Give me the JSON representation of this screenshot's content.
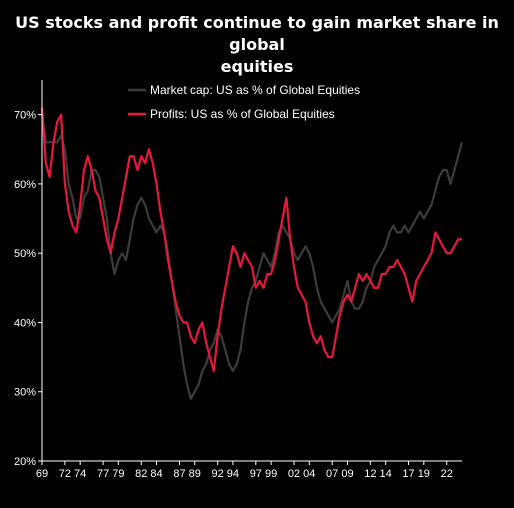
{
  "chart_data": {
    "type": "line",
    "title_lines": [
      "US stocks and profit continue to gain market share in global",
      "equities"
    ],
    "xlabel": "",
    "ylabel": "",
    "x_tick_labels": [
      "69",
      "72",
      "74",
      "77",
      "79",
      "82",
      "84",
      "87",
      "89",
      "92",
      "94",
      "97",
      "99",
      "02",
      "04",
      "07",
      "09",
      "12",
      "14",
      "17",
      "19",
      "22"
    ],
    "x_tick_years": [
      1969,
      1972,
      1974,
      1977,
      1979,
      1982,
      1984,
      1987,
      1989,
      1992,
      1994,
      1997,
      1999,
      2002,
      2004,
      2007,
      2009,
      2012,
      2014,
      2017,
      2019,
      2022
    ],
    "y_tick_labels": [
      "20%",
      "30%",
      "40%",
      "50%",
      "60%",
      "70%"
    ],
    "y_tick_values": [
      20,
      30,
      40,
      50,
      60,
      70
    ],
    "xlim": [
      1969,
      2024
    ],
    "ylim": [
      20,
      75
    ],
    "grid": false,
    "legend": "top-center",
    "series": [
      {
        "name": "Market cap: US as % of Global Equities",
        "color": "#3c3c3c",
        "points": [
          [
            1969.0,
            70
          ],
          [
            1969.5,
            66
          ],
          [
            1970.0,
            66
          ],
          [
            1970.5,
            66
          ],
          [
            1971.0,
            66
          ],
          [
            1971.5,
            67
          ],
          [
            1972.0,
            65
          ],
          [
            1972.5,
            60
          ],
          [
            1973.0,
            58
          ],
          [
            1973.5,
            55
          ],
          [
            1974.0,
            55
          ],
          [
            1974.5,
            58
          ],
          [
            1975.0,
            59
          ],
          [
            1975.5,
            62
          ],
          [
            1976.0,
            62
          ],
          [
            1976.5,
            61
          ],
          [
            1977.0,
            58
          ],
          [
            1977.5,
            55
          ],
          [
            1978.0,
            50
          ],
          [
            1978.5,
            47
          ],
          [
            1979.0,
            49
          ],
          [
            1979.5,
            50
          ],
          [
            1980.0,
            49
          ],
          [
            1980.5,
            52
          ],
          [
            1981.0,
            55
          ],
          [
            1981.5,
            57
          ],
          [
            1982.0,
            58
          ],
          [
            1982.5,
            57
          ],
          [
            1983.0,
            55
          ],
          [
            1983.5,
            54
          ],
          [
            1984.0,
            53
          ],
          [
            1984.5,
            54
          ],
          [
            1985.0,
            53
          ],
          [
            1985.5,
            50
          ],
          [
            1986.0,
            46
          ],
          [
            1986.5,
            42
          ],
          [
            1987.0,
            38
          ],
          [
            1987.5,
            34
          ],
          [
            1988.0,
            31
          ],
          [
            1988.5,
            29
          ],
          [
            1989.0,
            30
          ],
          [
            1989.5,
            31
          ],
          [
            1990.0,
            33
          ],
          [
            1990.5,
            34
          ],
          [
            1991.0,
            36
          ],
          [
            1991.5,
            37
          ],
          [
            1992.0,
            39
          ],
          [
            1992.5,
            38
          ],
          [
            1993.0,
            36
          ],
          [
            1993.5,
            34
          ],
          [
            1994.0,
            33
          ],
          [
            1994.5,
            34
          ],
          [
            1995.0,
            36
          ],
          [
            1995.5,
            40
          ],
          [
            1996.0,
            43
          ],
          [
            1996.5,
            45
          ],
          [
            1997.0,
            46
          ],
          [
            1997.5,
            48
          ],
          [
            1998.0,
            50
          ],
          [
            1998.5,
            49
          ],
          [
            1999.0,
            48
          ],
          [
            1999.5,
            50
          ],
          [
            2000.0,
            53
          ],
          [
            2000.5,
            54
          ],
          [
            2001.0,
            53
          ],
          [
            2001.5,
            52
          ],
          [
            2002.0,
            50
          ],
          [
            2002.5,
            49
          ],
          [
            2003.0,
            50
          ],
          [
            2003.5,
            51
          ],
          [
            2004.0,
            50
          ],
          [
            2004.5,
            48
          ],
          [
            2005.0,
            45
          ],
          [
            2005.5,
            43
          ],
          [
            2006.0,
            42
          ],
          [
            2006.5,
            41
          ],
          [
            2007.0,
            40
          ],
          [
            2007.5,
            41
          ],
          [
            2008.0,
            42
          ],
          [
            2008.5,
            44
          ],
          [
            2009.0,
            46
          ],
          [
            2009.5,
            43
          ],
          [
            2010.0,
            42
          ],
          [
            2010.5,
            42
          ],
          [
            2011.0,
            43
          ],
          [
            2011.5,
            45
          ],
          [
            2012.0,
            46
          ],
          [
            2012.5,
            48
          ],
          [
            2013.0,
            49
          ],
          [
            2013.5,
            50
          ],
          [
            2014.0,
            51
          ],
          [
            2014.5,
            53
          ],
          [
            2015.0,
            54
          ],
          [
            2015.5,
            53
          ],
          [
            2016.0,
            53
          ],
          [
            2016.5,
            54
          ],
          [
            2017.0,
            53
          ],
          [
            2017.5,
            54
          ],
          [
            2018.0,
            55
          ],
          [
            2018.5,
            56
          ],
          [
            2019.0,
            55
          ],
          [
            2019.5,
            56
          ],
          [
            2020.0,
            57
          ],
          [
            2020.5,
            59
          ],
          [
            2021.0,
            61
          ],
          [
            2021.5,
            62
          ],
          [
            2022.0,
            62
          ],
          [
            2022.5,
            60
          ],
          [
            2023.0,
            62
          ],
          [
            2023.5,
            64
          ],
          [
            2024.0,
            66
          ]
        ]
      },
      {
        "name": "Profits: US as % of Global Equities",
        "color": "#e8173c",
        "points": [
          [
            1969.0,
            71
          ],
          [
            1969.5,
            63
          ],
          [
            1970.0,
            61
          ],
          [
            1970.5,
            66
          ],
          [
            1971.0,
            69
          ],
          [
            1971.5,
            70
          ],
          [
            1972.0,
            60
          ],
          [
            1972.5,
            56
          ],
          [
            1973.0,
            54
          ],
          [
            1973.5,
            53
          ],
          [
            1974.0,
            57
          ],
          [
            1974.5,
            62
          ],
          [
            1975.0,
            64
          ],
          [
            1975.5,
            62
          ],
          [
            1976.0,
            59
          ],
          [
            1976.5,
            58
          ],
          [
            1977.0,
            55
          ],
          [
            1977.5,
            52
          ],
          [
            1978.0,
            50
          ],
          [
            1978.5,
            53
          ],
          [
            1979.0,
            55
          ],
          [
            1979.5,
            58
          ],
          [
            1980.0,
            61
          ],
          [
            1980.5,
            64
          ],
          [
            1981.0,
            64
          ],
          [
            1981.5,
            62
          ],
          [
            1982.0,
            64
          ],
          [
            1982.5,
            63
          ],
          [
            1983.0,
            65
          ],
          [
            1983.5,
            63
          ],
          [
            1984.0,
            60
          ],
          [
            1984.5,
            56
          ],
          [
            1985.0,
            53
          ],
          [
            1985.5,
            49
          ],
          [
            1986.0,
            46
          ],
          [
            1986.5,
            43
          ],
          [
            1987.0,
            41
          ],
          [
            1987.5,
            40
          ],
          [
            1988.0,
            40
          ],
          [
            1988.5,
            38
          ],
          [
            1989.0,
            37
          ],
          [
            1989.5,
            39
          ],
          [
            1990.0,
            40
          ],
          [
            1990.5,
            37
          ],
          [
            1991.0,
            35
          ],
          [
            1991.5,
            33
          ],
          [
            1992.0,
            38
          ],
          [
            1992.5,
            42
          ],
          [
            1993.0,
            45
          ],
          [
            1993.5,
            48
          ],
          [
            1994.0,
            51
          ],
          [
            1994.5,
            50
          ],
          [
            1995.0,
            48
          ],
          [
            1995.5,
            50
          ],
          [
            1996.0,
            49
          ],
          [
            1996.5,
            48
          ],
          [
            1997.0,
            45
          ],
          [
            1997.5,
            46
          ],
          [
            1998.0,
            45
          ],
          [
            1998.5,
            47
          ],
          [
            1999.0,
            47
          ],
          [
            1999.5,
            49
          ],
          [
            2000.0,
            52
          ],
          [
            2000.5,
            55
          ],
          [
            2001.0,
            58
          ],
          [
            2001.5,
            52
          ],
          [
            2002.0,
            48
          ],
          [
            2002.5,
            45
          ],
          [
            2003.0,
            44
          ],
          [
            2003.5,
            43
          ],
          [
            2004.0,
            40
          ],
          [
            2004.5,
            38
          ],
          [
            2005.0,
            37
          ],
          [
            2005.5,
            38
          ],
          [
            2006.0,
            36
          ],
          [
            2006.5,
            35
          ],
          [
            2007.0,
            35
          ],
          [
            2007.5,
            38
          ],
          [
            2008.0,
            41
          ],
          [
            2008.5,
            43
          ],
          [
            2009.0,
            44
          ],
          [
            2009.5,
            43
          ],
          [
            2010.0,
            45
          ],
          [
            2010.5,
            47
          ],
          [
            2011.0,
            46
          ],
          [
            2011.5,
            47
          ],
          [
            2012.0,
            46
          ],
          [
            2012.5,
            45
          ],
          [
            2013.0,
            45
          ],
          [
            2013.5,
            47
          ],
          [
            2014.0,
            47
          ],
          [
            2014.5,
            48
          ],
          [
            2015.0,
            48
          ],
          [
            2015.5,
            49
          ],
          [
            2016.0,
            48
          ],
          [
            2016.5,
            47
          ],
          [
            2017.0,
            45
          ],
          [
            2017.5,
            43
          ],
          [
            2018.0,
            46
          ],
          [
            2018.5,
            47
          ],
          [
            2019.0,
            48
          ],
          [
            2019.5,
            49
          ],
          [
            2020.0,
            50
          ],
          [
            2020.5,
            53
          ],
          [
            2021.0,
            52
          ],
          [
            2021.5,
            51
          ],
          [
            2022.0,
            50
          ],
          [
            2022.5,
            50
          ],
          [
            2023.0,
            51
          ],
          [
            2023.5,
            52
          ],
          [
            2024.0,
            52
          ]
        ]
      }
    ]
  }
}
